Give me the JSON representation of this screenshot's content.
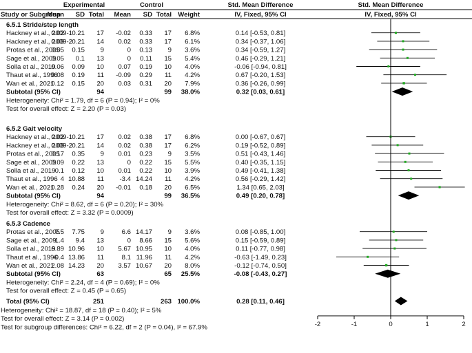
{
  "header": {
    "experimental": "Experimental",
    "control": "Control",
    "smd_title": "Std. Mean Difference",
    "smd_title_plot": "Std. Mean Difference",
    "columns": [
      "Study or Subgroup",
      "Mean",
      "SD",
      "Total",
      "Mean",
      "SD",
      "Total",
      "Weight",
      "IV, Fixed, 95% CI",
      "IV, Fixed, 95% CI"
    ]
  },
  "colors": {
    "text": "#111111",
    "square": "#22aa22",
    "line": "#000000",
    "diamond": "#000000"
  },
  "chart_data": {
    "type": "forest",
    "measure": "Std. Mean Difference, IV, Fixed, 95% CI",
    "xlim": [
      -2,
      2
    ],
    "x_ticks": [
      -2,
      -1,
      0,
      1,
      2
    ],
    "x_tick_labels": [
      "-2",
      "-1",
      "0",
      "1",
      "2"
    ],
    "null_line": 0,
    "subgroups": [
      {
        "title": "6.5.1 Stride/step length",
        "studies": [
          {
            "study": "Hackney et al., 2009-1",
            "e_mean": "0.02",
            "e_sd": "0.21",
            "e_n": "17",
            "c_mean": "-0.02",
            "c_sd": "0.33",
            "c_n": "17",
            "weight": "6.8%",
            "ci_text": "0.14 [-0.53, 0.81]",
            "est": 0.14,
            "lo": -0.53,
            "hi": 0.81
          },
          {
            "study": "Hackney et al., 2009-2",
            "e_mean": "0.08",
            "e_sd": "0.21",
            "e_n": "14",
            "c_mean": "0.02",
            "c_sd": "0.33",
            "c_n": "17",
            "weight": "6.1%",
            "ci_text": "0.34 [-0.37, 1.06]",
            "est": 0.34,
            "lo": -0.37,
            "hi": 1.06
          },
          {
            "study": "Protas et al., 2005",
            "e_mean": "0.05",
            "e_sd": "0.15",
            "e_n": "9",
            "c_mean": "0",
            "c_sd": "0.13",
            "c_n": "9",
            "weight": "3.6%",
            "ci_text": "0.34 [-0.59, 1.27]",
            "est": 0.34,
            "lo": -0.59,
            "hi": 1.27
          },
          {
            "study": "Sage et al., 2009",
            "e_mean": "0.05",
            "e_sd": "0.1",
            "e_n": "13",
            "c_mean": "0",
            "c_sd": "0.11",
            "c_n": "15",
            "weight": "5.4%",
            "ci_text": "0.46 [-0.29, 1.21]",
            "est": 0.46,
            "lo": -0.29,
            "hi": 1.21
          },
          {
            "study": "Solla et al., 2019",
            "e_mean": "0.06",
            "e_sd": "0.09",
            "e_n": "10",
            "c_mean": "0.07",
            "c_sd": "0.19",
            "c_n": "10",
            "weight": "4.0%",
            "ci_text": "-0.06 [-0.94, 0.81]",
            "est": -0.06,
            "lo": -0.94,
            "hi": 0.81
          },
          {
            "study": "Thaut et al., 1996",
            "e_mean": "0.08",
            "e_sd": "0.19",
            "e_n": "11",
            "c_mean": "-0.09",
            "c_sd": "0.29",
            "c_n": "11",
            "weight": "4.2%",
            "ci_text": "0.67 [-0.20, 1.53]",
            "est": 0.67,
            "lo": -0.2,
            "hi": 1.53
          },
          {
            "study": "Wan et al., 2021",
            "e_mean": "0.12",
            "e_sd": "0.15",
            "e_n": "20",
            "c_mean": "0.03",
            "c_sd": "0.31",
            "c_n": "20",
            "weight": "7.9%",
            "ci_text": "0.36 [-0.26, 0.99]",
            "est": 0.36,
            "lo": -0.26,
            "hi": 0.99
          }
        ],
        "subtotal": {
          "label": "Subtotal (95% CI)",
          "e_n": "94",
          "c_n": "99",
          "weight": "38.0%",
          "ci_text": "0.32 [0.03, 0.61]",
          "est": 0.32,
          "lo": 0.03,
          "hi": 0.61
        },
        "heterogeneity": "Heterogeneity: Chi² = 1.79, df = 6 (P = 0.94); I² = 0%",
        "overall_effect": "Test for overall effect: Z = 2.20 (P = 0.03)"
      },
      {
        "title": "6.5.2 Gait velocity",
        "studies": [
          {
            "study": "Hackney et al., 2009-1",
            "e_mean": "0.02",
            "e_sd": "0.21",
            "e_n": "17",
            "c_mean": "0.02",
            "c_sd": "0.38",
            "c_n": "17",
            "weight": "6.8%",
            "ci_text": "0.00 [-0.67, 0.67]",
            "est": 0.0,
            "lo": -0.67,
            "hi": 0.67
          },
          {
            "study": "Hackney et al., 2009-2",
            "e_mean": "0.08",
            "e_sd": "0.21",
            "e_n": "14",
            "c_mean": "0.02",
            "c_sd": "0.38",
            "c_n": "17",
            "weight": "6.2%",
            "ci_text": "0.19 [-0.52, 0.89]",
            "est": 0.19,
            "lo": -0.52,
            "hi": 0.89
          },
          {
            "study": "Protas et al., 2005",
            "e_mean": "0.17",
            "e_sd": "0.35",
            "e_n": "9",
            "c_mean": "0.01",
            "c_sd": "0.23",
            "c_n": "9",
            "weight": "3.5%",
            "ci_text": "0.51 [-0.43, 1.46]",
            "est": 0.51,
            "lo": -0.43,
            "hi": 1.46
          },
          {
            "study": "Sage et al., 2009",
            "e_mean": "0.09",
            "e_sd": "0.22",
            "e_n": "13",
            "c_mean": "0",
            "c_sd": "0.22",
            "c_n": "15",
            "weight": "5.5%",
            "ci_text": "0.40 [-0.35, 1.15]",
            "est": 0.4,
            "lo": -0.35,
            "hi": 1.15
          },
          {
            "study": "Solla et al., 2019",
            "e_mean": "0.1",
            "e_sd": "0.12",
            "e_n": "10",
            "c_mean": "0.01",
            "c_sd": "0.22",
            "c_n": "10",
            "weight": "3.9%",
            "ci_text": "0.49 [-0.41, 1.38]",
            "est": 0.49,
            "lo": -0.41,
            "hi": 1.38
          },
          {
            "study": "Thaut et al., 1996",
            "e_mean": "4",
            "e_sd": "10.88",
            "e_n": "11",
            "c_mean": "-3.4",
            "c_sd": "14.24",
            "c_n": "11",
            "weight": "4.2%",
            "ci_text": "0.56 [-0.29, 1.42]",
            "est": 0.56,
            "lo": -0.29,
            "hi": 1.42
          },
          {
            "study": "Wan et al., 2021",
            "e_mean": "0.28",
            "e_sd": "0.24",
            "e_n": "20",
            "c_mean": "-0.01",
            "c_sd": "0.18",
            "c_n": "20",
            "weight": "6.5%",
            "ci_text": "1.34 [0.65, 2.03]",
            "est": 1.34,
            "lo": 0.65,
            "hi": 2.03
          }
        ],
        "subtotal": {
          "label": "Subtotal (95% CI)",
          "e_n": "94",
          "c_n": "99",
          "weight": "36.5%",
          "ci_text": "0.49 [0.20, 0.78]",
          "est": 0.49,
          "lo": 0.2,
          "hi": 0.78
        },
        "heterogeneity": "Heterogeneity: Chi² = 8.62, df = 6 (P = 0.20); I² = 30%",
        "overall_effect": "Test for overall effect: Z = 3.32 (P = 0.0009)"
      },
      {
        "title": "6.5.3 Cadence",
        "studies": [
          {
            "study": "Protas et al., 2005",
            "e_mean": "7.5",
            "e_sd": "7.75",
            "e_n": "9",
            "c_mean": "6.6",
            "c_sd": "14.17",
            "c_n": "9",
            "weight": "3.6%",
            "ci_text": "0.08 [-0.85, 1.00]",
            "est": 0.08,
            "lo": -0.85,
            "hi": 1.0
          },
          {
            "study": "Sage et al., 2009",
            "e_mean": "1.4",
            "e_sd": "9.4",
            "e_n": "13",
            "c_mean": "0",
            "c_sd": "8.66",
            "c_n": "15",
            "weight": "5.6%",
            "ci_text": "0.15 [-0.59, 0.89]",
            "est": 0.15,
            "lo": -0.59,
            "hi": 0.89
          },
          {
            "study": "Solla et al., 2019",
            "e_mean": "6.89",
            "e_sd": "10.96",
            "e_n": "10",
            "c_mean": "5.67",
            "c_sd": "10.95",
            "c_n": "10",
            "weight": "4.0%",
            "ci_text": "0.11 [-0.77, 0.98]",
            "est": 0.11,
            "lo": -0.77,
            "hi": 0.98
          },
          {
            "study": "Thaut et al., 1996",
            "e_mean": "-0.4",
            "e_sd": "13.86",
            "e_n": "11",
            "c_mean": "8.1",
            "c_sd": "11.96",
            "c_n": "11",
            "weight": "4.2%",
            "ci_text": "-0.63 [-1.49, 0.23]",
            "est": -0.63,
            "lo": -1.49,
            "hi": 0.23
          },
          {
            "study": "Wan et al., 2021",
            "e_mean": "2.08",
            "e_sd": "14.23",
            "e_n": "20",
            "c_mean": "3.57",
            "c_sd": "10.67",
            "c_n": "20",
            "weight": "8.0%",
            "ci_text": "-0.12 [-0.74, 0.50]",
            "est": -0.12,
            "lo": -0.74,
            "hi": 0.5
          }
        ],
        "subtotal": {
          "label": "Subtotal (95% CI)",
          "e_n": "63",
          "c_n": "65",
          "weight": "25.5%",
          "ci_text": "-0.08 [-0.43, 0.27]",
          "est": -0.08,
          "lo": -0.43,
          "hi": 0.27
        },
        "heterogeneity": "Heterogeneity: Chi² = 2.24, df = 4 (P = 0.69); I² = 0%",
        "overall_effect": "Test for overall effect: Z = 0.45 (P = 0.65)"
      }
    ],
    "total": {
      "label": "Total (95% CI)",
      "e_n": "251",
      "c_n": "263",
      "weight": "100.0%",
      "ci_text": "0.28 [0.11, 0.46]",
      "est": 0.28,
      "lo": 0.11,
      "hi": 0.46
    },
    "footer": [
      "Heterogeneity: Chi² = 18.87, df = 18 (P = 0.40); I² = 5%",
      "Test for overall effect: Z = 3.14 (P = 0.002)",
      "Test for subgroup differences: Chi² = 6.22, df = 2 (P = 0.04), I² = 67.9%"
    ]
  }
}
